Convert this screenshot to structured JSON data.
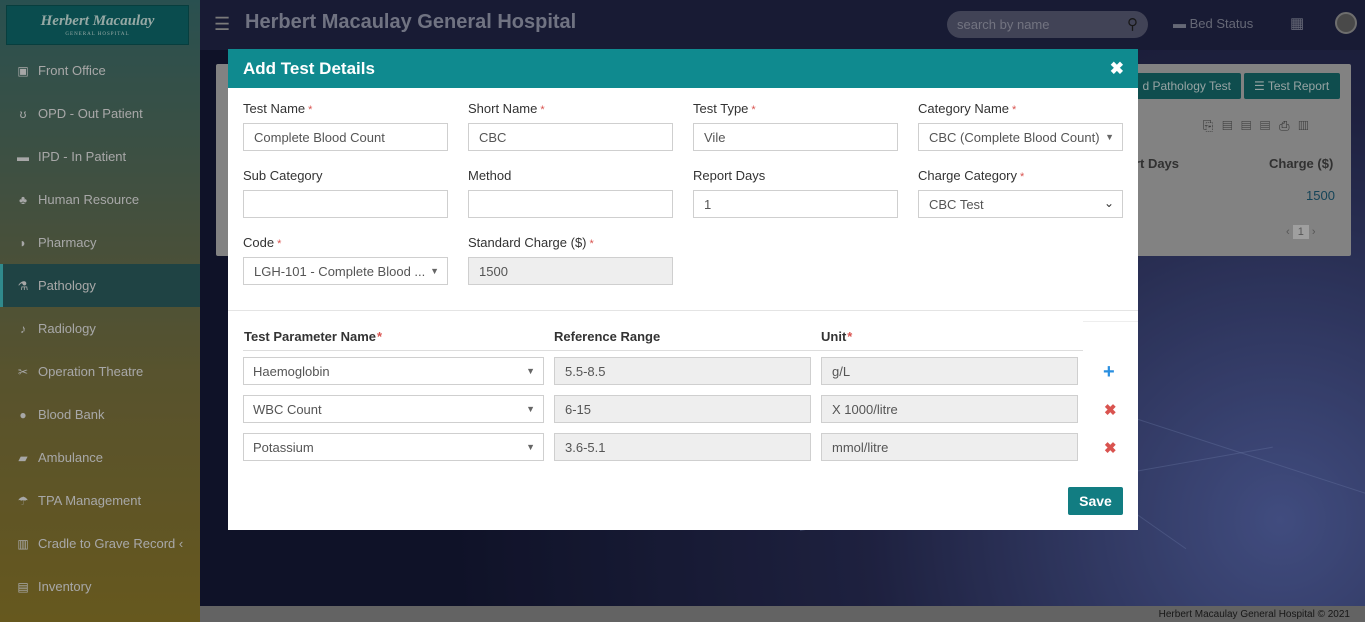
{
  "app": {
    "logo_text": "Herbert Macaulay",
    "logo_sub": "GENERAL HOSPITAL",
    "title": "Herbert Macaulay General Hospital",
    "search_placeholder": "search by name",
    "bed_status": "Bed Status",
    "footer": "Herbert Macaulay General Hospital © 2021"
  },
  "sidebar": {
    "items": [
      {
        "label": "Front Office",
        "icon": "desk-icon"
      },
      {
        "label": "OPD - Out Patient",
        "icon": "stethoscope-icon"
      },
      {
        "label": "IPD - In Patient",
        "icon": "bed-icon"
      },
      {
        "label": "Human Resource",
        "icon": "sitemap-icon"
      },
      {
        "label": "Pharmacy",
        "icon": "mortar-icon"
      },
      {
        "label": "Pathology",
        "icon": "flask-icon"
      },
      {
        "label": "Radiology",
        "icon": "microscope-icon"
      },
      {
        "label": "Operation Theatre",
        "icon": "scissors-icon"
      },
      {
        "label": "Blood Bank",
        "icon": "tint-icon"
      },
      {
        "label": "Ambulance",
        "icon": "ambulance-icon"
      },
      {
        "label": "TPA Management",
        "icon": "umbrella-icon"
      },
      {
        "label": "Cradle to Grave Record ‹",
        "icon": "records-icon"
      },
      {
        "label": "Inventory",
        "icon": "chart-icon"
      }
    ],
    "active_index": 5
  },
  "background": {
    "btn_add_test": "d Pathology Test",
    "btn_test_report": "Test Report",
    "col_report_days": "ort Days",
    "col_charge": "Charge ($)",
    "charge_value": "1500",
    "page": "1"
  },
  "modal": {
    "title": "Add Test Details",
    "fields": {
      "test_name": {
        "label": "Test Name",
        "value": "Complete Blood Count"
      },
      "short_name": {
        "label": "Short Name",
        "value": "CBC"
      },
      "test_type": {
        "label": "Test Type",
        "value": "Vile"
      },
      "category_name": {
        "label": "Category Name",
        "value": "CBC (Complete Blood Count)"
      },
      "sub_category": {
        "label": "Sub Category",
        "value": ""
      },
      "method": {
        "label": "Method",
        "value": ""
      },
      "report_days": {
        "label": "Report Days",
        "value": "1"
      },
      "charge_category": {
        "label": "Charge Category",
        "value": "CBC Test"
      },
      "code": {
        "label": "Code",
        "value": "LGH-101 - Complete Blood ..."
      },
      "standard_charge": {
        "label": "Standard Charge ($)",
        "value": "1500"
      }
    },
    "params": {
      "headers": {
        "name": "Test Parameter Name",
        "range": "Reference Range",
        "unit": "Unit"
      },
      "rows": [
        {
          "name": "Haemoglobin",
          "range": "5.5-8.5",
          "unit": "g/L"
        },
        {
          "name": "WBC Count",
          "range": "6-15",
          "unit": "X 1000/litre"
        },
        {
          "name": "Potassium",
          "range": "3.6-5.1",
          "unit": "mmol/litre"
        }
      ]
    },
    "save_label": "Save"
  }
}
